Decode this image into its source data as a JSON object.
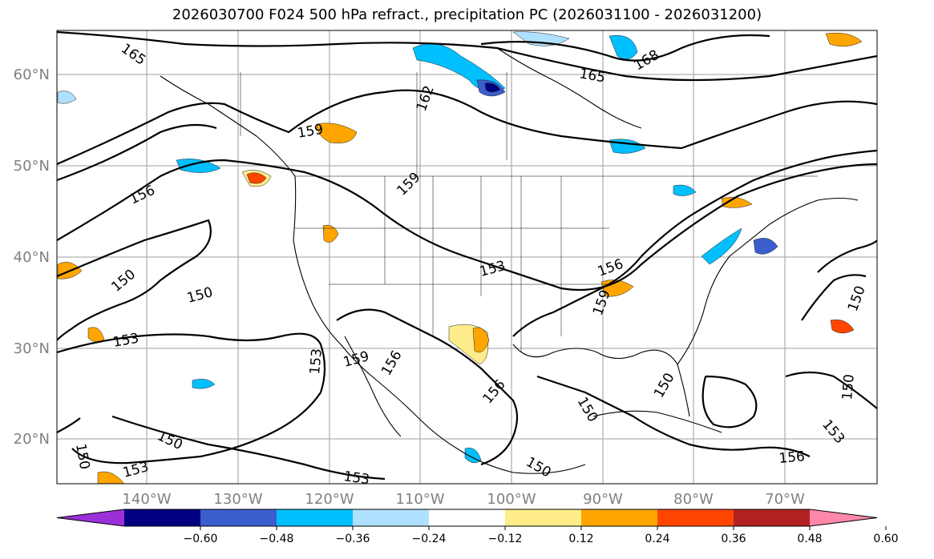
{
  "title": "2026030700 F024 500 hPa refract., precipitation PC (2026031100 - 2026031200)",
  "map": {
    "lat_ticks": [
      "60°N",
      "50°N",
      "40°N",
      "30°N",
      "20°N"
    ],
    "lon_ticks": [
      "140°W",
      "130°W",
      "120°W",
      "110°W",
      "100°W",
      "90°W",
      "80°W",
      "70°W"
    ],
    "contour_labels": [
      {
        "text": "165"
      },
      {
        "text": "168"
      },
      {
        "text": "165"
      },
      {
        "text": "162"
      },
      {
        "text": "159"
      },
      {
        "text": "159"
      },
      {
        "text": "156"
      },
      {
        "text": "153"
      },
      {
        "text": "156"
      },
      {
        "text": "159"
      },
      {
        "text": "150"
      },
      {
        "text": "150"
      },
      {
        "text": "153"
      },
      {
        "text": "153"
      },
      {
        "text": "159"
      },
      {
        "text": "156"
      },
      {
        "text": "156"
      },
      {
        "text": "150"
      },
      {
        "text": "150"
      },
      {
        "text": "150"
      },
      {
        "text": "150"
      },
      {
        "text": "150"
      },
      {
        "text": "153"
      },
      {
        "text": "153"
      },
      {
        "text": "150"
      },
      {
        "text": "150"
      },
      {
        "text": "153"
      },
      {
        "text": "156"
      }
    ]
  },
  "colorbar": {
    "colors": [
      "#9b30d9",
      "#000080",
      "#3a5fcd",
      "#00bfff",
      "#b0e0ff",
      "#ffffff",
      "#ffec8b",
      "#ffa500",
      "#ff4500",
      "#b22222",
      "#ff88aa"
    ],
    "ticks": [
      "−0.60",
      "−0.48",
      "−0.36",
      "−0.24",
      "−0.12",
      "0.12",
      "0.24",
      "0.36",
      "0.48",
      "0.60"
    ]
  }
}
